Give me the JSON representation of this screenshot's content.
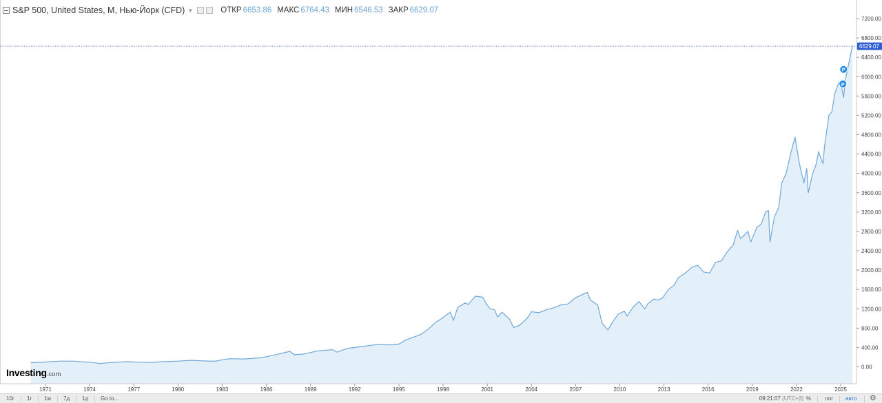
{
  "header": {
    "symbol_title": "S&P 500, United States, M, Нью-Йорк (CFD)",
    "open_label": "ОТКР",
    "open_value": "6653.86",
    "high_label": "МАКС",
    "high_value": "6764.43",
    "low_label": "МИН",
    "low_value": "6546.53",
    "close_label": "ЗАКР",
    "close_value": "6629.07"
  },
  "logo": {
    "main": "Investing",
    "suffix": ".com"
  },
  "bottom_bar": {
    "ranges": [
      "10г",
      "1г",
      "1м",
      "7д",
      "1д",
      "Go to..."
    ],
    "time": "09:21:07",
    "timezone": "(UTC+3)",
    "percent_label": "%",
    "log_label": "лог",
    "auto_label": "авто"
  },
  "colors": {
    "line": "#6fa7d8",
    "fill": "#e3eff9",
    "last_price_badge": "#2f5fd0",
    "marker": "#1e88e5"
  },
  "chart_data": {
    "type": "area",
    "title": "S&P 500, United States, M, Нью-Йорк (CFD)",
    "xlabel": "",
    "ylabel": "",
    "xlim": [
      1969.4,
      2026.0
    ],
    "ylim": [
      0,
      7200
    ],
    "grid": false,
    "y_ticks": [
      0,
      400,
      800,
      1200,
      1600,
      2000,
      2400,
      2800,
      3200,
      3600,
      4000,
      4400,
      4800,
      5200,
      5600,
      6000,
      6400,
      6800,
      7200
    ],
    "x_ticks": [
      1971,
      1974,
      1977,
      1980,
      1983,
      1986,
      1989,
      1992,
      1995,
      1998,
      2001,
      2004,
      2007,
      2010,
      2013,
      2016,
      2019,
      2022,
      2025
    ],
    "last_price": 6629.07,
    "markers": [
      {
        "label": "P",
        "x": 2025.2,
        "y": 6150
      },
      {
        "label": "P",
        "x": 2025.15,
        "y": 5850
      }
    ],
    "series": [
      {
        "x": [
          1970.0,
          1971.0,
          1972.0,
          1972.9,
          1973.5,
          1974.0,
          1974.7,
          1975.5,
          1976.5,
          1977.5,
          1978.2,
          1979.0,
          1980.0,
          1980.9,
          1981.5,
          1982.5,
          1983.0,
          1983.5,
          1984.5,
          1985.5,
          1986.0,
          1986.5,
          1987.6,
          1987.9,
          1988.5,
          1989.5,
          1990.5,
          1990.8,
          1991.5,
          1992.5,
          1993.5,
          1994.5,
          1995.0,
          1995.5,
          1996.5,
          1997.0,
          1997.5,
          1997.8,
          1998.5,
          1998.7,
          1999.0,
          1999.5,
          1999.7,
          2000.2,
          2000.7,
          2000.9,
          2001.2,
          2001.5,
          2001.7,
          2002.0,
          2002.5,
          2002.8,
          2003.2,
          2003.7,
          2004.0,
          2004.5,
          2005.0,
          2005.5,
          2006.0,
          2006.5,
          2007.0,
          2007.5,
          2007.8,
          2008.0,
          2008.5,
          2008.8,
          2009.2,
          2009.5,
          2009.9,
          2010.3,
          2010.5,
          2010.9,
          2011.3,
          2011.7,
          2011.9,
          2012.3,
          2012.6,
          2012.9,
          2013.3,
          2013.7,
          2014.0,
          2014.5,
          2014.9,
          2015.3,
          2015.7,
          2016.1,
          2016.5,
          2016.9,
          2017.3,
          2017.7,
          2018.0,
          2018.2,
          2018.7,
          2018.9,
          2019.3,
          2019.6,
          2019.9,
          2020.1,
          2020.2,
          2020.5,
          2020.8,
          2021.0,
          2021.3,
          2021.6,
          2021.9,
          2022.2,
          2022.5,
          2022.7,
          2022.8,
          2023.1,
          2023.3,
          2023.5,
          2023.8,
          2023.9,
          2024.2,
          2024.4,
          2024.6,
          2024.9,
          2025.0,
          2025.2,
          2025.3,
          2025.5,
          2025.7,
          2025.8
        ],
        "values": [
          85,
          100,
          118,
          118,
          104,
          97,
          69,
          91,
          107,
          96,
          93,
          107,
          118,
          135,
          125,
          115,
          145,
          168,
          163,
          185,
          210,
          240,
          320,
          250,
          262,
          330,
          355,
          305,
          380,
          420,
          460,
          455,
          470,
          560,
          670,
          780,
          920,
          980,
          1130,
          960,
          1230,
          1320,
          1290,
          1460,
          1440,
          1320,
          1200,
          1180,
          1030,
          1130,
          990,
          810,
          860,
          1000,
          1140,
          1120,
          1180,
          1220,
          1280,
          1300,
          1430,
          1500,
          1540,
          1380,
          1280,
          900,
          760,
          920,
          1090,
          1150,
          1050,
          1230,
          1350,
          1200,
          1300,
          1400,
          1380,
          1420,
          1600,
          1690,
          1850,
          1950,
          2060,
          2100,
          1960,
          1940,
          2160,
          2190,
          2380,
          2520,
          2820,
          2650,
          2800,
          2580,
          2880,
          2950,
          3200,
          3230,
          2580,
          3100,
          3300,
          3800,
          4000,
          4400,
          4750,
          4200,
          3800,
          4100,
          3600,
          4000,
          4150,
          4450,
          4200,
          4550,
          5200,
          5270,
          5650,
          5900,
          5880,
          5570,
          5900,
          6200,
          6500,
          6629
        ]
      }
    ]
  }
}
